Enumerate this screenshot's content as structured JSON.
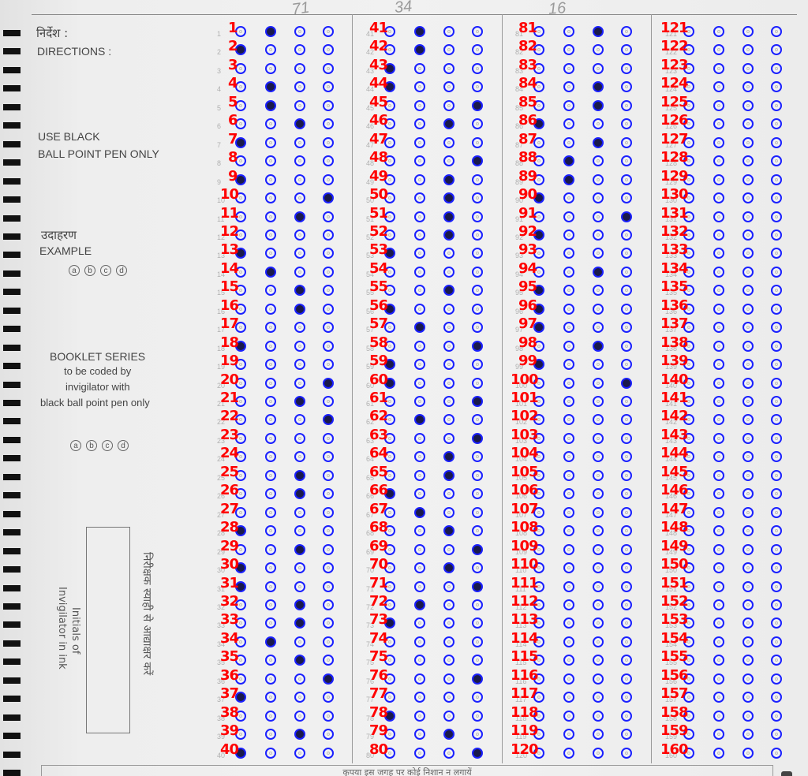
{
  "directions": {
    "hindi": "निर्देश :",
    "english": "DIRECTIONS :"
  },
  "instruction": {
    "line1": "USE BLACK",
    "line2": "BALL POINT PEN ONLY"
  },
  "example": {
    "hindi": "उदाहरण",
    "english": "EXAMPLE",
    "options": [
      "a",
      "b",
      "c",
      "d"
    ]
  },
  "booklet": {
    "title": "BOOKLET SERIES",
    "line1": "to be coded by",
    "line2": "invigilator with",
    "line3": "black ball point pen only",
    "options": [
      "a",
      "b",
      "c",
      "d"
    ]
  },
  "invigilator": {
    "english_line1": "Initials of",
    "english_line2": "Invigilator in ink",
    "hindi": "निरीक्षक स्याही से आद्याक्षर करें"
  },
  "footer": {
    "note": "कृपया इस जगह पर कोई निशान न लगायें"
  },
  "pencil_marks": [
    "71",
    "34",
    "16"
  ],
  "colors": {
    "bubble_outline": "#1a20ff",
    "question_number": "#ff0000",
    "filled_mark": "#1a1a4a"
  },
  "options_per_question": 4,
  "columns": [
    {
      "start": 1,
      "answers": [
        1,
        0,
        null,
        1,
        1,
        2,
        0,
        null,
        0,
        3,
        2,
        null,
        0,
        1,
        2,
        2,
        null,
        0,
        null,
        3,
        2,
        3,
        null,
        null,
        2,
        2,
        null,
        0,
        2,
        0,
        0,
        2,
        2,
        1,
        2,
        3,
        0,
        null,
        2,
        0
      ]
    },
    {
      "start": 41,
      "answers": [
        1,
        1,
        0,
        0,
        3,
        2,
        null,
        3,
        2,
        2,
        2,
        2,
        0,
        null,
        2,
        0,
        1,
        3,
        0,
        0,
        3,
        1,
        3,
        2,
        2,
        0,
        1,
        2,
        3,
        2,
        3,
        1,
        0,
        null,
        null,
        3,
        null,
        0,
        2,
        3
      ]
    },
    {
      "start": 81,
      "answers": [
        2,
        null,
        null,
        2,
        2,
        0,
        2,
        1,
        1,
        0,
        3,
        0,
        null,
        2,
        0,
        0,
        0,
        2,
        0,
        3,
        null,
        null,
        null,
        null,
        null,
        null,
        null,
        null,
        null,
        null,
        null,
        null,
        null,
        null,
        null,
        null,
        null,
        null,
        null,
        null
      ]
    },
    {
      "start": 121,
      "answers": [
        null,
        null,
        null,
        null,
        null,
        null,
        null,
        null,
        null,
        null,
        null,
        null,
        null,
        null,
        null,
        null,
        null,
        null,
        null,
        null,
        null,
        null,
        null,
        null,
        null,
        null,
        null,
        null,
        null,
        null,
        null,
        null,
        null,
        null,
        null,
        null,
        null,
        null,
        null,
        null
      ]
    }
  ]
}
